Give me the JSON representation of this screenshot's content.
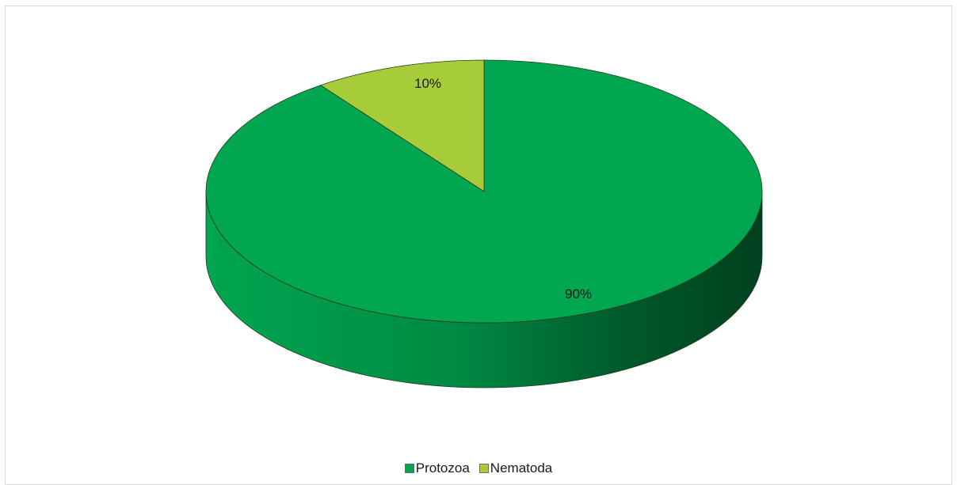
{
  "chart_data": {
    "type": "pie",
    "title": "",
    "style": "3d",
    "categories": [
      "Protozoa",
      "Nematoda"
    ],
    "values": [
      90,
      10
    ],
    "labels": [
      "90%",
      "10%"
    ],
    "colors": [
      "#00a650",
      "#a6cc3a"
    ],
    "legend_position": "bottom"
  }
}
